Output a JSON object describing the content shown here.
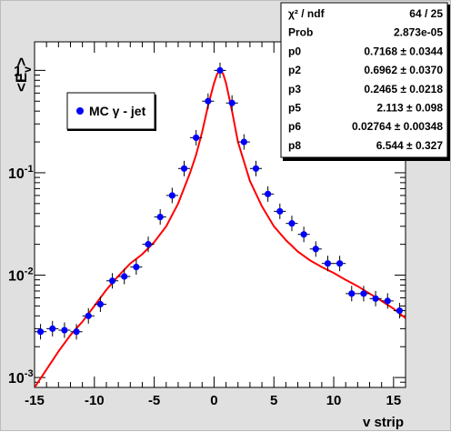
{
  "chart_data": {
    "type": "scatter",
    "xlabel": "v strip",
    "ylabel": "<E_v>",
    "ylabel_main": "<E",
    "ylabel_sub": "v",
    "ylabel_close": ">",
    "xlim": [
      -15,
      16
    ],
    "ylim": [
      0.0008,
      1.9
    ],
    "yscale": "log",
    "x_ticks": [
      -15,
      -10,
      -5,
      0,
      5,
      10,
      15
    ],
    "x_tick_labels": [
      "-15",
      "-10",
      "-5",
      "0",
      "5",
      "10",
      "15"
    ],
    "y_ticks": [
      0.001,
      0.01,
      0.1,
      1
    ],
    "y_tick_labels": [
      {
        "base": "10",
        "exp": "-3"
      },
      {
        "base": "10",
        "exp": "-2"
      },
      {
        "base": "10",
        "exp": "-1"
      },
      {
        "base": "1",
        "exp": ""
      }
    ],
    "legend": {
      "label": "MC γ - jet",
      "placement": "top-left",
      "marker_color": "#0000ff"
    },
    "series": [
      {
        "name": "MC γ - jet",
        "color": "#0000ff",
        "x": [
          -14.5,
          -13.5,
          -12.5,
          -11.5,
          -10.5,
          -9.5,
          -8.5,
          -7.5,
          -6.5,
          -5.5,
          -4.5,
          -3.5,
          -2.5,
          -1.5,
          -0.5,
          0.5,
          1.5,
          2.5,
          3.5,
          4.5,
          5.5,
          6.5,
          7.5,
          8.5,
          9.5,
          10.5,
          11.5,
          12.5,
          13.5,
          14.5,
          15.5
        ],
        "y": [
          0.0028,
          0.003,
          0.0029,
          0.0028,
          0.004,
          0.0052,
          0.0088,
          0.0097,
          0.012,
          0.02,
          0.037,
          0.06,
          0.11,
          0.22,
          0.5,
          1.0,
          0.48,
          0.2,
          0.11,
          0.062,
          0.042,
          0.032,
          0.025,
          0.018,
          0.013,
          0.013,
          0.0066,
          0.0066,
          0.0059,
          0.0056,
          0.0045
        ]
      }
    ],
    "fit_curve": {
      "name": "fit",
      "color": "#ff0000",
      "x": [
        -15,
        -14,
        -13,
        -12,
        -11,
        -10,
        -9,
        -8,
        -7,
        -6,
        -5,
        -4,
        -3,
        -2,
        -1.5,
        -1,
        -0.5,
        0,
        0.25,
        0.5,
        0.75,
        1,
        1.5,
        2,
        3,
        4,
        5,
        6,
        7,
        8,
        9,
        10,
        11,
        12,
        13,
        14,
        15,
        16
      ],
      "y": [
        0.0008,
        0.0012,
        0.0018,
        0.0026,
        0.0035,
        0.005,
        0.0072,
        0.0098,
        0.013,
        0.016,
        0.021,
        0.03,
        0.05,
        0.1,
        0.15,
        0.25,
        0.45,
        0.75,
        0.92,
        0.99,
        0.93,
        0.75,
        0.4,
        0.2,
        0.083,
        0.047,
        0.03,
        0.022,
        0.017,
        0.014,
        0.012,
        0.0105,
        0.009,
        0.0078,
        0.0066,
        0.0056,
        0.0047,
        0.0038
      ]
    },
    "stats": [
      {
        "label": "χ² / ndf",
        "value": "64 / 25"
      },
      {
        "label": "Prob",
        "value": "2.873e-05"
      },
      {
        "label": "p0",
        "value": "0.7168 ± 0.0344"
      },
      {
        "label": "p2",
        "value": "0.6962 ± 0.0370"
      },
      {
        "label": "p3",
        "value": "0.2465 ± 0.0218"
      },
      {
        "label": "p5",
        "value": "2.113 ± 0.098"
      },
      {
        "label": "p6",
        "value": "0.02764 ± 0.00348"
      },
      {
        "label": "p8",
        "value": "6.544 ± 0.327"
      }
    ]
  }
}
